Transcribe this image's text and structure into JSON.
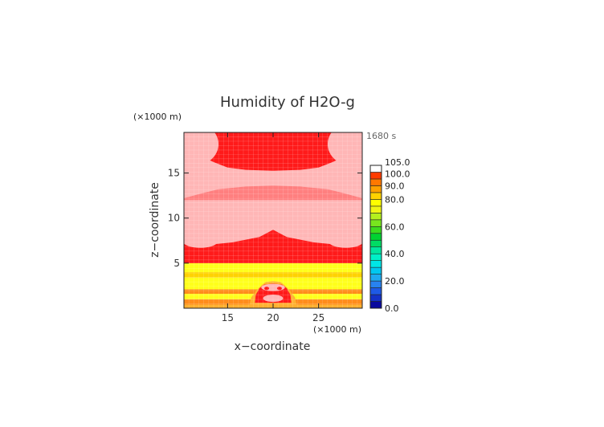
{
  "chart_data": {
    "type": "heatmap",
    "title": "Humidity of H2O-g",
    "xlabel": "x−coordinate",
    "ylabel": "z−coordinate",
    "x_scale_label": "(×1000 m)",
    "y_scale_label": "(×1000 m)",
    "time_label": "1680 s",
    "xlim": [
      10.2,
      29.8
    ],
    "ylim": [
      0,
      19.5
    ],
    "x_ticks": [
      {
        "value": 15,
        "label": "15"
      },
      {
        "value": 20,
        "label": "20"
      },
      {
        "value": 25,
        "label": "25"
      }
    ],
    "y_ticks": [
      {
        "value": 5,
        "label": "5"
      },
      {
        "value": 10,
        "label": "10"
      },
      {
        "value": 15,
        "label": "15"
      }
    ],
    "colorbar": {
      "min": 0,
      "max": 105,
      "levels": [
        {
          "lo": 0,
          "hi": 5,
          "color": "#0a0a9e"
        },
        {
          "lo": 5,
          "hi": 10,
          "color": "#1432c8"
        },
        {
          "lo": 10,
          "hi": 15,
          "color": "#1e5ae6"
        },
        {
          "lo": 15,
          "hi": 20,
          "color": "#2882f0"
        },
        {
          "lo": 20,
          "hi": 25,
          "color": "#1eaaf0"
        },
        {
          "lo": 25,
          "hi": 30,
          "color": "#00c8f0"
        },
        {
          "lo": 30,
          "hi": 35,
          "color": "#00e6e6"
        },
        {
          "lo": 35,
          "hi": 40,
          "color": "#00f0c8"
        },
        {
          "lo": 40,
          "hi": 45,
          "color": "#00e6a0"
        },
        {
          "lo": 45,
          "hi": 50,
          "color": "#00dc64"
        },
        {
          "lo": 50,
          "hi": 55,
          "color": "#00d232"
        },
        {
          "lo": 55,
          "hi": 60,
          "color": "#3cdc1e"
        },
        {
          "lo": 60,
          "hi": 65,
          "color": "#78e61e"
        },
        {
          "lo": 65,
          "hi": 70,
          "color": "#b4f01e"
        },
        {
          "lo": 70,
          "hi": 75,
          "color": "#f0f514"
        },
        {
          "lo": 75,
          "hi": 80,
          "color": "#ffff00"
        },
        {
          "lo": 80,
          "hi": 85,
          "color": "#ffd200"
        },
        {
          "lo": 85,
          "hi": 90,
          "color": "#ffa000"
        },
        {
          "lo": 90,
          "hi": 95,
          "color": "#ff7800"
        },
        {
          "lo": 95,
          "hi": 100,
          "color": "#ff3c00"
        },
        {
          "lo": 100,
          "hi": 105,
          "color": "#ffffff"
        }
      ],
      "labels": [
        {
          "value": 0,
          "label": "0.0"
        },
        {
          "value": 20,
          "label": "20.0"
        },
        {
          "value": 40,
          "label": "40.0"
        },
        {
          "value": 60,
          "label": "60.0"
        },
        {
          "value": 80,
          "label": "80.0"
        },
        {
          "value": 90,
          "label": "90.0"
        },
        {
          "value": 100,
          "label": "100.0"
        },
        {
          "value": 105,
          "label": "105.0"
        }
      ]
    },
    "field_colors": {
      "saturated": "#ff1a1a",
      "supersaturated": "#ffb6b6",
      "orange": "#ff8c1a",
      "light_orange": "#ffb030",
      "yellow": "#ffff1a",
      "light_yellow": "#ffff70"
    },
    "bands": [
      {
        "z0": 0,
        "z1": 0.4,
        "value": 85,
        "color": "#ffb030"
      },
      {
        "z0": 0.4,
        "z1": 1.0,
        "value": 90,
        "color": "#ff8c1a"
      },
      {
        "z0": 1.0,
        "z1": 1.6,
        "value": 80,
        "color": "#ffff1a"
      },
      {
        "z0": 1.6,
        "z1": 2.1,
        "value": 90,
        "color": "#ff8c1a"
      },
      {
        "z0": 2.1,
        "z1": 3.4,
        "value": 78,
        "color": "#ffff1a"
      },
      {
        "z0": 3.4,
        "z1": 4.0,
        "value": 82,
        "color": "#ffd200"
      },
      {
        "z0": 4.0,
        "z1": 5.0,
        "value": 76,
        "color": "#ffff1a"
      },
      {
        "z0": 5.0,
        "z1": 19.5,
        "value": 100,
        "color": "#ff1a1a"
      }
    ]
  }
}
